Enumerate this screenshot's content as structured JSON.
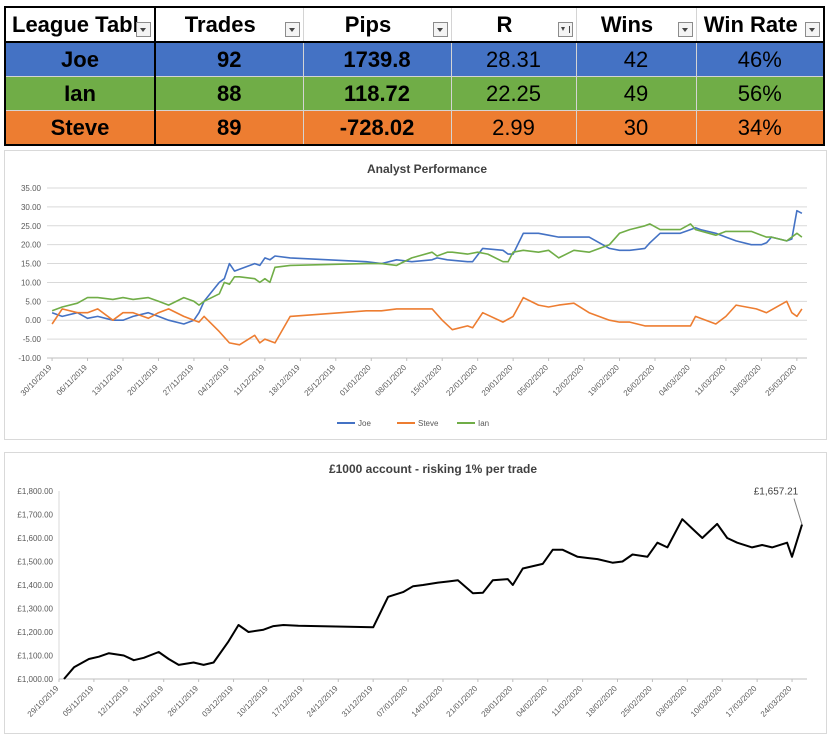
{
  "table": {
    "headers": [
      "League Tabl",
      "Trades",
      "Pips",
      "R",
      "Wins",
      "Win Rate"
    ],
    "rows": [
      {
        "name": "Joe",
        "trades": "92",
        "pips": "1739.8",
        "r": "28.31",
        "wins": "42",
        "win_rate": "46%",
        "color": "#4472C4"
      },
      {
        "name": "Ian",
        "trades": "88",
        "pips": "118.72",
        "r": "22.25",
        "wins": "49",
        "win_rate": "56%",
        "color": "#70AD47"
      },
      {
        "name": "Steve",
        "trades": "89",
        "pips": "-728.02",
        "r": "2.99",
        "wins": "30",
        "win_rate": "34%",
        "color": "#ED7D31"
      }
    ]
  },
  "chart_data": [
    {
      "type": "line",
      "title": "Analyst Performance",
      "xlabel": "",
      "ylabel": "",
      "ylim": [
        -10,
        35
      ],
      "yticks": [
        "35.00",
        "30.00",
        "25.00",
        "20.00",
        "15.00",
        "10.00",
        "5.00",
        "0.00",
        "-5.00",
        "-10.00"
      ],
      "xticks": [
        "30/10/2019",
        "06/11/2019",
        "13/11/2019",
        "20/11/2019",
        "27/11/2019",
        "04/12/2019",
        "11/12/2019",
        "18/12/2019",
        "25/12/2019",
        "01/01/2020",
        "08/01/2020",
        "15/01/2020",
        "22/01/2020",
        "29/01/2020",
        "05/02/2020",
        "12/02/2020",
        "19/02/2020",
        "26/02/2020",
        "04/03/2020",
        "11/03/2020",
        "18/03/2020",
        "25/03/2020"
      ],
      "grid": true,
      "legend": "bottom",
      "series": [
        {
          "name": "Joe",
          "color": "#4472C4",
          "x": [
            "2019-10-30",
            "2019-11-01",
            "2019-11-04",
            "2019-11-06",
            "2019-11-08",
            "2019-11-11",
            "2019-11-13",
            "2019-11-15",
            "2019-11-18",
            "2019-11-20",
            "2019-11-22",
            "2019-11-25",
            "2019-11-27",
            "2019-11-28",
            "2019-11-29",
            "2019-12-02",
            "2019-12-03",
            "2019-12-04",
            "2019-12-05",
            "2019-12-06",
            "2019-12-09",
            "2019-12-10",
            "2019-12-11",
            "2019-12-12",
            "2019-12-13",
            "2019-12-16",
            "2019-12-31",
            "2020-01-03",
            "2020-01-06",
            "2020-01-09",
            "2020-01-13",
            "2020-01-14",
            "2020-01-16",
            "2020-01-20",
            "2020-01-21",
            "2020-01-23",
            "2020-01-27",
            "2020-01-28",
            "2020-01-29",
            "2020-01-31",
            "2020-02-03",
            "2020-02-05",
            "2020-02-07",
            "2020-02-10",
            "2020-02-13",
            "2020-02-17",
            "2020-02-19",
            "2020-02-21",
            "2020-02-24",
            "2020-02-25",
            "2020-02-27",
            "2020-03-02",
            "2020-03-04",
            "2020-03-05",
            "2020-03-06",
            "2020-03-09",
            "2020-03-11",
            "2020-03-13",
            "2020-03-16",
            "2020-03-18",
            "2020-03-19",
            "2020-03-20",
            "2020-03-23",
            "2020-03-24",
            "2020-03-25",
            "2020-03-26"
          ],
          "y": [
            2,
            1,
            2,
            0.5,
            1,
            0,
            0,
            1,
            2,
            1,
            0,
            -1,
            0,
            2,
            5,
            10,
            11,
            15,
            13,
            13.5,
            15,
            14.5,
            16.5,
            16,
            17,
            16.5,
            15.5,
            15,
            16,
            15.5,
            16,
            16.5,
            16,
            15.5,
            15.5,
            19,
            18.5,
            17.5,
            17.5,
            23,
            23,
            22.5,
            22,
            22,
            22,
            19,
            18.5,
            18.5,
            19,
            20.5,
            23,
            23,
            24,
            24.5,
            24,
            23,
            22,
            21,
            20,
            20,
            20.5,
            22,
            21,
            21.5,
            29,
            28.3
          ]
        },
        {
          "name": "Steve",
          "color": "#ED7D31",
          "x": [
            "2019-10-30",
            "2019-11-01",
            "2019-11-04",
            "2019-11-06",
            "2019-11-08",
            "2019-11-11",
            "2019-11-13",
            "2019-11-15",
            "2019-11-18",
            "2019-11-20",
            "2019-11-22",
            "2019-11-25",
            "2019-11-27",
            "2019-11-28",
            "2019-11-29",
            "2019-12-02",
            "2019-12-04",
            "2019-12-06",
            "2019-12-09",
            "2019-12-10",
            "2019-12-11",
            "2019-12-12",
            "2019-12-13",
            "2019-12-16",
            "2019-12-31",
            "2020-01-03",
            "2020-01-06",
            "2020-01-09",
            "2020-01-13",
            "2020-01-15",
            "2020-01-17",
            "2020-01-20",
            "2020-01-21",
            "2020-01-23",
            "2020-01-27",
            "2020-01-29",
            "2020-01-31",
            "2020-02-03",
            "2020-02-05",
            "2020-02-07",
            "2020-02-10",
            "2020-02-13",
            "2020-02-17",
            "2020-02-19",
            "2020-02-21",
            "2020-02-24",
            "2020-02-25",
            "2020-02-27",
            "2020-03-02",
            "2020-03-04",
            "2020-03-05",
            "2020-03-09",
            "2020-03-11",
            "2020-03-13",
            "2020-03-17",
            "2020-03-19",
            "2020-03-23",
            "2020-03-24",
            "2020-03-25",
            "2020-03-26"
          ],
          "y": [
            -1,
            3,
            2,
            2,
            3,
            0,
            2,
            2,
            0.5,
            2,
            3,
            1,
            0,
            -0.5,
            1,
            -3,
            -6,
            -6.5,
            -4,
            -6,
            -5,
            -5.5,
            -6,
            1,
            2.5,
            2.5,
            3,
            3,
            3,
            0,
            -2.5,
            -1.5,
            -2,
            2,
            -0.5,
            1,
            6,
            4,
            3.5,
            4,
            4.5,
            2,
            0,
            -0.5,
            -0.5,
            -1.5,
            -1.5,
            -1.5,
            -1.5,
            -1.5,
            1,
            -1,
            1,
            4,
            3,
            2,
            5,
            2,
            1,
            3
          ]
        },
        {
          "name": "Ian",
          "color": "#70AD47",
          "x": [
            "2019-10-30",
            "2019-11-01",
            "2019-11-04",
            "2019-11-06",
            "2019-11-08",
            "2019-11-11",
            "2019-11-13",
            "2019-11-15",
            "2019-11-18",
            "2019-11-20",
            "2019-11-22",
            "2019-11-25",
            "2019-11-27",
            "2019-11-28",
            "2019-11-29",
            "2019-12-02",
            "2019-12-03",
            "2019-12-04",
            "2019-12-05",
            "2019-12-06",
            "2019-12-09",
            "2019-12-10",
            "2019-12-11",
            "2019-12-12",
            "2019-12-13",
            "2019-12-16",
            "2019-12-31",
            "2020-01-03",
            "2020-01-06",
            "2020-01-09",
            "2020-01-13",
            "2020-01-14",
            "2020-01-16",
            "2020-01-17",
            "2020-01-20",
            "2020-01-22",
            "2020-01-24",
            "2020-01-27",
            "2020-01-28",
            "2020-01-29",
            "2020-01-31",
            "2020-02-03",
            "2020-02-05",
            "2020-02-07",
            "2020-02-10",
            "2020-02-13",
            "2020-02-17",
            "2020-02-19",
            "2020-02-21",
            "2020-02-24",
            "2020-02-25",
            "2020-02-27",
            "2020-03-02",
            "2020-03-04",
            "2020-03-05",
            "2020-03-09",
            "2020-03-11",
            "2020-03-13",
            "2020-03-16",
            "2020-03-18",
            "2020-03-19",
            "2020-03-20",
            "2020-03-23",
            "2020-03-24",
            "2020-03-25",
            "2020-03-26"
          ],
          "y": [
            2.5,
            3.5,
            4.5,
            6,
            6,
            5.5,
            6,
            5.5,
            6,
            5,
            4,
            6,
            5,
            4,
            5,
            7,
            10,
            9.5,
            11.5,
            11.5,
            11,
            10,
            11,
            10,
            14,
            14.5,
            15,
            15,
            14.5,
            16.5,
            18,
            17,
            18,
            18,
            17.5,
            18,
            17.5,
            15.5,
            15.5,
            18,
            18.5,
            18,
            18.5,
            16.5,
            18.5,
            18,
            20,
            23,
            24,
            25,
            25.5,
            24,
            24,
            25.5,
            24,
            22.5,
            23.5,
            23.5,
            23.5,
            22.5,
            22,
            22,
            21,
            22,
            23,
            22
          ]
        }
      ]
    },
    {
      "type": "line",
      "title": "£1000 account - risking 1% per trade",
      "xlabel": "",
      "ylabel": "",
      "ylim": [
        1000,
        1800
      ],
      "yticks": [
        "£1,800.00",
        "£1,700.00",
        "£1,600.00",
        "£1,500.00",
        "£1,400.00",
        "£1,300.00",
        "£1,200.00",
        "£1,100.00",
        "£1,000.00"
      ],
      "xticks": [
        "29/10/2019",
        "05/11/2019",
        "12/11/2019",
        "19/11/2019",
        "26/11/2019",
        "03/12/2019",
        "10/12/2019",
        "17/12/2019",
        "24/12/2019",
        "31/12/2019",
        "07/01/2020",
        "14/01/2020",
        "21/01/2020",
        "28/01/2020",
        "04/02/2020",
        "11/02/2020",
        "18/02/2020",
        "25/02/2020",
        "03/03/2020",
        "10/03/2020",
        "17/03/2020",
        "24/03/2020"
      ],
      "grid": false,
      "annotation": "£1,657.21",
      "series": [
        {
          "name": "",
          "color": "#000000",
          "x": [
            "2019-10-30",
            "2019-11-01",
            "2019-11-04",
            "2019-11-06",
            "2019-11-08",
            "2019-11-11",
            "2019-11-13",
            "2019-11-15",
            "2019-11-18",
            "2019-11-20",
            "2019-11-22",
            "2019-11-25",
            "2019-11-27",
            "2019-11-29",
            "2019-12-02",
            "2019-12-04",
            "2019-12-06",
            "2019-12-09",
            "2019-12-11",
            "2019-12-13",
            "2019-12-16",
            "2019-12-31",
            "2020-01-03",
            "2020-01-06",
            "2020-01-08",
            "2020-01-10",
            "2020-01-13",
            "2020-01-15",
            "2020-01-17",
            "2020-01-20",
            "2020-01-22",
            "2020-01-24",
            "2020-01-27",
            "2020-01-28",
            "2020-01-30",
            "2020-02-03",
            "2020-02-05",
            "2020-02-07",
            "2020-02-10",
            "2020-02-12",
            "2020-02-14",
            "2020-02-17",
            "2020-02-19",
            "2020-02-21",
            "2020-02-24",
            "2020-02-26",
            "2020-02-28",
            "2020-03-02",
            "2020-03-04",
            "2020-03-06",
            "2020-03-09",
            "2020-03-11",
            "2020-03-13",
            "2020-03-16",
            "2020-03-18",
            "2020-03-20",
            "2020-03-23",
            "2020-03-24",
            "2020-03-26"
          ],
          "y": [
            1000,
            1050,
            1085,
            1095,
            1110,
            1100,
            1080,
            1090,
            1115,
            1085,
            1060,
            1070,
            1060,
            1070,
            1160,
            1230,
            1200,
            1210,
            1225,
            1230,
            1227,
            1220,
            1350,
            1370,
            1395,
            1400,
            1410,
            1415,
            1420,
            1365,
            1367,
            1420,
            1425,
            1400,
            1470,
            1490,
            1550,
            1550,
            1520,
            1515,
            1510,
            1495,
            1500,
            1530,
            1520,
            1580,
            1560,
            1680,
            1640,
            1600,
            1660,
            1600,
            1580,
            1560,
            1570,
            1560,
            1580,
            1520,
            1657.21
          ]
        }
      ]
    }
  ]
}
